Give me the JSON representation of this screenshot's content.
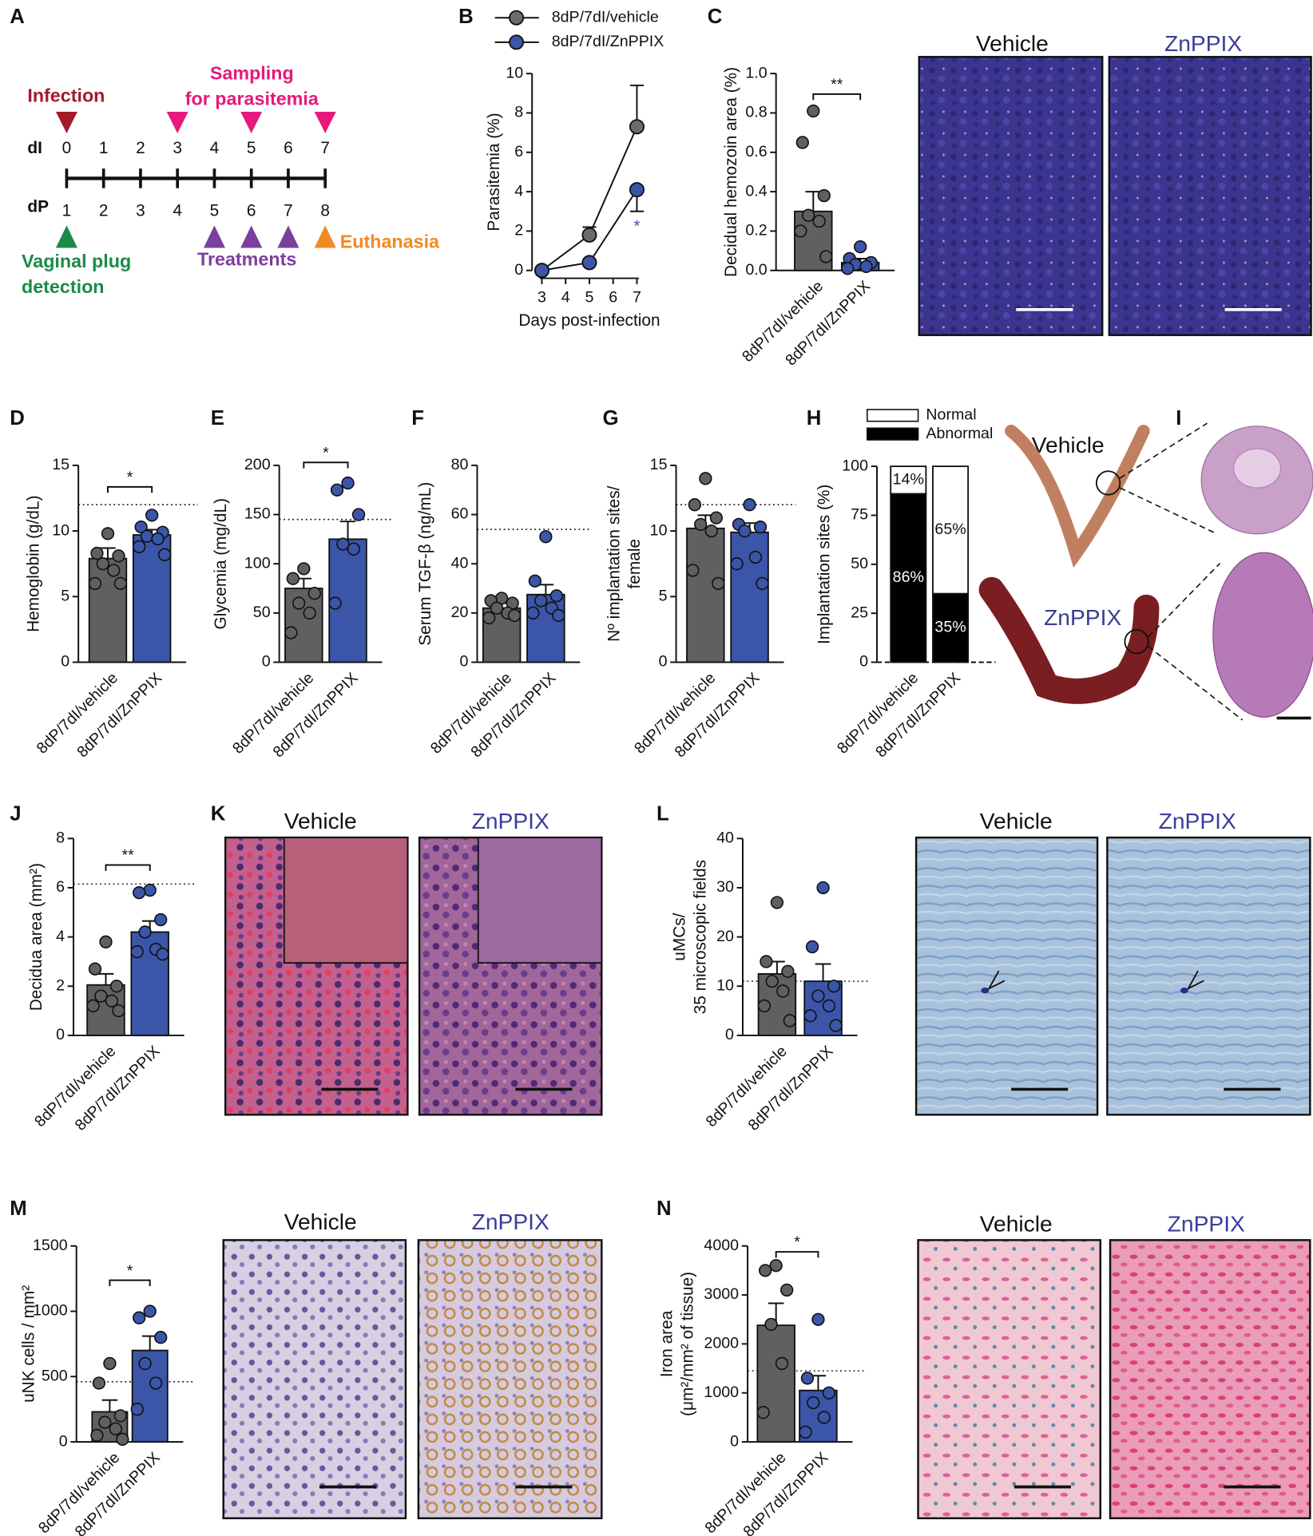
{
  "chart_data": [
    {
      "panel": "B",
      "type": "line",
      "xlabel": "Days post-infection",
      "ylabel": "Parasitemia (%)",
      "x": [
        3,
        5,
        7
      ],
      "xlim": [
        3,
        7
      ],
      "xticks": [
        3,
        4,
        5,
        6,
        7
      ],
      "ylim": [
        0,
        10
      ],
      "yticks": [
        0,
        2,
        4,
        6,
        8,
        10
      ],
      "series": [
        {
          "name": "8dP/7dI/vehicle",
          "color": "#6b6b6b",
          "values": [
            0,
            1.8,
            7.3
          ],
          "errors": [
            0,
            0.4,
            2.1
          ]
        },
        {
          "name": "8dP/7dI/ZnPPIX",
          "color": "#3b55a8",
          "values": [
            0,
            0.4,
            4.1
          ],
          "errors": [
            0,
            0.1,
            1.1
          ]
        }
      ],
      "annotation": "*"
    },
    {
      "panel": "C",
      "type": "bar",
      "ylabel": "Decidual hemozoin area (%)",
      "categories": [
        "8dP/7dI/vehicle",
        "8dP/7dI/ZnPPIX"
      ],
      "colors": [
        "#606060",
        "#3b55a8"
      ],
      "values": [
        0.3,
        0.04
      ],
      "errors": [
        0.1,
        0.02
      ],
      "points": [
        [
          0.81,
          0.65,
          0.38,
          0.28,
          0.25,
          0.2,
          0.07
        ],
        [
          0.12,
          0.06,
          0.04,
          0.03,
          0.02,
          0.01
        ]
      ],
      "ylim": [
        0,
        1
      ],
      "yticks": [
        {
          "value": 0,
          "label": "0.0"
        },
        0.2,
        0.4,
        0.6,
        0.8,
        {
          "value": 1,
          "label": "1.0"
        }
      ],
      "significance": "**"
    },
    {
      "panel": "D",
      "type": "bar",
      "ylabel": "Hemoglobin (g/dL)",
      "categories": [
        "8dP/7dI/vehicle",
        "8dP/7dI/ZnPPIX"
      ],
      "colors": [
        "#606060",
        "#3b55a8"
      ],
      "values": [
        7.9,
        9.7
      ],
      "errors": [
        0.8,
        0.4
      ],
      "points": [
        [
          9.8,
          8.3,
          8.1,
          7.5,
          7.0,
          6.0,
          6.0
        ],
        [
          11.2,
          10.3,
          9.9,
          9.6,
          9.4,
          8.8,
          8.2
        ]
      ],
      "ylim": [
        0,
        15
      ],
      "yticks": [
        0,
        5,
        10,
        15
      ],
      "reference": 12,
      "significance": "*"
    },
    {
      "panel": "E",
      "type": "bar",
      "ylabel": "Glycemia (mg/dL)",
      "categories": [
        "8dP/7dI/vehicle",
        "8dP/7dI/ZnPPIX"
      ],
      "colors": [
        "#606060",
        "#3b55a8"
      ],
      "values": [
        75,
        125
      ],
      "errors": [
        10,
        18
      ],
      "points": [
        [
          95,
          85,
          70,
          60,
          50,
          30
        ],
        [
          182,
          175,
          150,
          120,
          115,
          60
        ]
      ],
      "ylim": [
        0,
        200
      ],
      "yticks": [
        0,
        50,
        100,
        150,
        200
      ],
      "reference": 145,
      "significance": "*"
    },
    {
      "panel": "F",
      "type": "bar",
      "ylabel": "Serum TGF-β (ng/mL)",
      "categories": [
        "8dP/7dI/vehicle",
        "8dP/7dI/ZnPPIX"
      ],
      "colors": [
        "#606060",
        "#3b55a8"
      ],
      "values": [
        22,
        27.5
      ],
      "errors": [
        2,
        4
      ],
      "points": [
        [
          26,
          25,
          24,
          22,
          20,
          18,
          19
        ],
        [
          51,
          33,
          27,
          25,
          22,
          20,
          19
        ]
      ],
      "ylim": [
        0,
        80
      ],
      "yticks": [
        0,
        20,
        40,
        60,
        80
      ],
      "reference": 54
    },
    {
      "panel": "G",
      "type": "bar",
      "ylabel": [
        "Nº implantation sites/",
        "female"
      ],
      "categories": [
        "8dP/7dI/vehicle",
        "8dP/7dI/ZnPPIX"
      ],
      "colors": [
        "#606060",
        "#3b55a8"
      ],
      "values": [
        10.2,
        9.9
      ],
      "errors": [
        1,
        0.7
      ],
      "points": [
        [
          14,
          12,
          11,
          10.5,
          10,
          7,
          6
        ],
        [
          12,
          10.5,
          10.3,
          10,
          8,
          7.5,
          6
        ]
      ],
      "ylim": [
        0,
        15
      ],
      "yticks": [
        0,
        5,
        10,
        15
      ],
      "reference": 12
    },
    {
      "panel": "H",
      "type": "stacked_bar",
      "ylabel": "Implantation sites (%)",
      "categories": [
        "8dP/7dI/vehicle",
        "8dP/7dI/ZnPPIX"
      ],
      "series": [
        {
          "name": "Abnormal",
          "color": "#000000",
          "values": [
            86,
            35
          ],
          "value_labels": [
            "86%",
            "35%"
          ]
        },
        {
          "name": "Normal",
          "color": "#ffffff",
          "values": [
            14,
            65
          ],
          "value_labels": [
            "14%",
            "65%"
          ]
        }
      ],
      "ylim": [
        0,
        100
      ],
      "yticks": [
        0,
        25,
        50,
        75,
        100
      ]
    },
    {
      "panel": "J",
      "type": "bar",
      "ylabel": "Decidua area (mm²)",
      "categories": [
        "8dP/7dI/vehicle",
        "8dP/7dI/ZnPPIX"
      ],
      "colors": [
        "#606060",
        "#3b55a8"
      ],
      "values": [
        2.05,
        4.2
      ],
      "errors": [
        0.45,
        0.45
      ],
      "points": [
        [
          3.8,
          2.7,
          2.0,
          1.6,
          1.4,
          1.2,
          1.0
        ],
        [
          5.9,
          5.8,
          4.7,
          4.2,
          3.5,
          3.4,
          3.3
        ]
      ],
      "ylim": [
        0,
        8
      ],
      "yticks": [
        0,
        2,
        4,
        6,
        8
      ],
      "reference": 6.15,
      "significance": "**"
    },
    {
      "panel": "L",
      "type": "bar",
      "ylabel": [
        "uMCs/",
        "35 microscopic fields"
      ],
      "categories": [
        "8dP/7dI/vehicle",
        "8dP/7dI/ZnPPIX"
      ],
      "colors": [
        "#606060",
        "#3b55a8"
      ],
      "values": [
        12.5,
        11
      ],
      "errors": [
        2.5,
        3.5
      ],
      "points": [
        [
          27,
          15,
          13,
          11,
          9,
          6,
          3
        ],
        [
          30,
          18,
          10,
          8,
          6,
          4,
          2
        ]
      ],
      "ylim": [
        0,
        40
      ],
      "yticks": [
        0,
        10,
        20,
        30,
        40
      ],
      "reference": 11
    },
    {
      "panel": "M",
      "type": "bar",
      "ylabel": "uNK cells / mm²",
      "categories": [
        "8dP/7dI/vehicle",
        "8dP/7dI/ZnPPIX"
      ],
      "colors": [
        "#606060",
        "#3b55a8"
      ],
      "values": [
        230,
        700
      ],
      "errors": [
        90,
        110
      ],
      "points": [
        [
          600,
          450,
          200,
          150,
          100,
          50,
          20
        ],
        [
          1000,
          950,
          800,
          600,
          450,
          250
        ]
      ],
      "ylim": [
        0,
        1500
      ],
      "yticks": [
        0,
        500,
        1000,
        1500
      ],
      "reference": 460,
      "significance": "*"
    },
    {
      "panel": "N",
      "type": "bar",
      "ylabel": [
        "Iron area",
        "(μm²/mm² of tissue)"
      ],
      "categories": [
        "8dP/7dI/vehicle",
        "8dP/7dI/ZnPPIX"
      ],
      "colors": [
        "#606060",
        "#3b55a8"
      ],
      "values": [
        2380,
        1050
      ],
      "errors": [
        450,
        300
      ],
      "points": [
        [
          3600,
          3500,
          3100,
          2400,
          1600,
          600
        ],
        [
          2500,
          1300,
          1000,
          800,
          500,
          200
        ]
      ],
      "ylim": [
        0,
        4000
      ],
      "yticks": [
        0,
        1000,
        2000,
        3000,
        4000
      ],
      "reference": 1450,
      "significance": "*"
    }
  ],
  "timeline": {
    "panel": "A",
    "rows": [
      "dI",
      "dP"
    ],
    "dI": [
      0,
      1,
      2,
      3,
      4,
      5,
      6,
      7
    ],
    "dP": [
      1,
      2,
      3,
      4,
      5,
      6,
      7,
      8
    ],
    "infection": "Infection",
    "sampling": [
      "Sampling",
      "for parasitemia"
    ],
    "plug": [
      "Vaginal plug",
      "detection"
    ],
    "treatments": "Treatments",
    "euthanasia": "Euthanasia"
  },
  "images": [
    {
      "labels": [
        "Vehicle",
        "ZnPPIX"
      ],
      "label_colors": [
        "#111111",
        "#3b3b9a"
      ]
    },
    {
      "panel": "I",
      "labels": [
        "Vehicle",
        "ZnPPIX"
      ],
      "label_colors": [
        "#111111",
        "#3b3b9a"
      ]
    },
    {
      "panel": "K",
      "labels": [
        "Vehicle",
        "ZnPPIX"
      ],
      "label_colors": [
        "#111111",
        "#3b3b9a"
      ]
    },
    {
      "labels": [
        "Vehicle",
        "ZnPPIX"
      ],
      "label_colors": [
        "#111111",
        "#3b3b9a"
      ]
    },
    {
      "labels": [
        "Vehicle",
        "ZnPPIX"
      ],
      "label_colors": [
        "#111111",
        "#3b3b9a"
      ]
    },
    {
      "labels": [
        "Vehicle",
        "ZnPPIX"
      ],
      "label_colors": [
        "#111111",
        "#3b3b9a"
      ]
    }
  ]
}
